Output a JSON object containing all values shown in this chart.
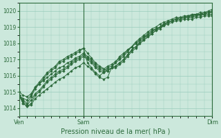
{
  "bg_color": "#cce8dc",
  "grid_color": "#99ccbb",
  "line_color": "#2d6b3c",
  "marker_color": "#2d6b3c",
  "title": "Pression niveau de la mer( hPa )",
  "xlabels": [
    "Ven",
    "Sam",
    "Dim"
  ],
  "xtick_positions": [
    0,
    32,
    96
  ],
  "ylim": [
    1013.5,
    1020.5
  ],
  "yticks": [
    1014,
    1015,
    1016,
    1017,
    1018,
    1019,
    1020
  ],
  "vlines": [
    32,
    96
  ],
  "n_points": 97,
  "lines": [
    {
      "x": [
        0,
        2,
        4,
        6,
        8,
        10,
        12,
        14,
        16,
        18,
        20,
        22,
        24,
        26,
        28,
        30,
        32,
        34,
        36,
        38,
        40,
        42,
        44,
        46,
        48,
        50,
        52,
        54,
        56,
        58,
        60,
        62,
        64,
        66,
        68,
        70,
        72,
        74,
        76,
        78,
        80,
        82,
        84,
        86,
        88,
        90,
        92,
        94,
        96
      ],
      "y": [
        1014.8,
        1014.4,
        1014.2,
        1014.5,
        1014.9,
        1015.1,
        1015.4,
        1015.7,
        1015.9,
        1016.1,
        1016.3,
        1016.4,
        1016.6,
        1016.8,
        1017.0,
        1017.1,
        1017.3,
        1017.1,
        1016.9,
        1016.6,
        1016.4,
        1016.3,
        1016.5,
        1016.6,
        1016.8,
        1017.0,
        1017.2,
        1017.5,
        1017.8,
        1018.0,
        1018.2,
        1018.4,
        1018.6,
        1018.8,
        1018.9,
        1019.0,
        1019.2,
        1019.3,
        1019.4,
        1019.5,
        1019.5,
        1019.6,
        1019.6,
        1019.6,
        1019.7,
        1019.7,
        1019.8,
        1019.8,
        1019.8
      ]
    },
    {
      "x": [
        0,
        2,
        4,
        6,
        8,
        10,
        12,
        14,
        16,
        18,
        20,
        22,
        24,
        26,
        28,
        30,
        32,
        34,
        36,
        38,
        40,
        42,
        44,
        46,
        48,
        50,
        52,
        54,
        56,
        58,
        60,
        62,
        64,
        66,
        68,
        70,
        72,
        74,
        76,
        78,
        80,
        82,
        84,
        86,
        88,
        90,
        92,
        94,
        96
      ],
      "y": [
        1014.8,
        1014.3,
        1014.1,
        1014.3,
        1014.8,
        1015.0,
        1015.3,
        1015.6,
        1015.8,
        1016.0,
        1016.2,
        1016.3,
        1016.5,
        1016.7,
        1016.9,
        1017.0,
        1017.2,
        1017.0,
        1016.8,
        1016.5,
        1016.3,
        1016.2,
        1016.3,
        1016.5,
        1016.6,
        1016.8,
        1017.0,
        1017.3,
        1017.6,
        1017.8,
        1018.0,
        1018.2,
        1018.4,
        1018.6,
        1018.8,
        1018.9,
        1019.1,
        1019.2,
        1019.3,
        1019.4,
        1019.4,
        1019.5,
        1019.5,
        1019.5,
        1019.6,
        1019.6,
        1019.7,
        1019.7,
        1019.7
      ]
    },
    {
      "x": [
        0,
        2,
        4,
        6,
        8,
        10,
        12,
        14,
        16,
        18,
        20,
        22,
        24,
        26,
        28,
        30,
        32,
        34,
        36,
        38,
        40,
        44,
        46,
        48,
        50,
        52,
        54,
        56,
        58,
        60,
        62,
        64,
        66,
        68,
        70,
        72,
        74,
        76,
        78,
        80,
        82,
        84,
        86,
        88,
        90,
        92,
        94,
        96
      ],
      "y": [
        1014.8,
        1014.5,
        1014.3,
        1014.7,
        1015.2,
        1015.5,
        1015.8,
        1016.1,
        1016.3,
        1016.5,
        1016.8,
        1016.9,
        1017.1,
        1017.2,
        1017.35,
        1017.5,
        1017.7,
        1017.4,
        1017.1,
        1016.8,
        1016.6,
        1016.3,
        1016.5,
        1016.6,
        1016.8,
        1017.0,
        1017.3,
        1017.6,
        1017.8,
        1018.1,
        1018.3,
        1018.5,
        1018.7,
        1018.9,
        1019.0,
        1019.2,
        1019.3,
        1019.4,
        1019.5,
        1019.5,
        1019.6,
        1019.6,
        1019.7,
        1019.7,
        1019.8,
        1019.8,
        1019.9,
        1019.9
      ]
    },
    {
      "x": [
        0,
        2,
        4,
        6,
        8,
        10,
        12,
        14,
        16,
        18,
        20,
        22,
        24,
        26,
        28,
        30,
        32,
        34,
        36,
        38,
        40,
        42,
        44,
        48,
        50,
        52,
        54,
        56,
        58,
        60,
        62,
        64,
        66,
        68,
        70,
        72,
        74,
        76,
        78,
        80,
        82,
        84,
        86,
        88,
        90,
        92,
        94,
        96
      ],
      "y": [
        1014.8,
        1014.6,
        1014.5,
        1014.8,
        1015.3,
        1015.6,
        1015.9,
        1016.2,
        1016.4,
        1016.6,
        1016.9,
        1017.0,
        1017.2,
        1017.3,
        1017.45,
        1017.6,
        1017.7,
        1016.8,
        1016.5,
        1016.2,
        1016.0,
        1016.2,
        1016.4,
        1016.5,
        1016.7,
        1016.9,
        1017.2,
        1017.5,
        1017.7,
        1018.0,
        1018.2,
        1018.4,
        1018.6,
        1018.8,
        1019.0,
        1019.1,
        1019.3,
        1019.4,
        1019.5,
        1019.6,
        1019.6,
        1019.7,
        1019.7,
        1019.8,
        1019.8,
        1019.9,
        1019.9,
        1020.0
      ]
    },
    {
      "x": [
        0,
        2,
        4,
        6,
        8,
        10,
        12,
        14,
        16,
        18,
        20,
        22,
        24,
        26,
        28,
        30,
        32,
        34,
        36,
        38,
        40,
        42,
        44,
        46,
        50,
        52,
        54,
        56,
        58,
        60,
        62,
        64,
        66,
        68,
        70,
        72,
        74,
        76,
        78,
        80,
        82,
        84,
        86,
        88,
        90,
        92,
        94,
        96
      ],
      "y": [
        1014.8,
        1014.3,
        1014.1,
        1014.2,
        1014.6,
        1014.8,
        1015.0,
        1015.2,
        1015.4,
        1015.6,
        1015.8,
        1015.9,
        1016.1,
        1016.3,
        1016.5,
        1016.6,
        1016.8,
        1016.6,
        1016.4,
        1016.1,
        1015.9,
        1015.8,
        1015.9,
        1016.5,
        1017.2,
        1017.4,
        1017.6,
        1017.8,
        1018.0,
        1018.2,
        1018.4,
        1018.5,
        1018.7,
        1018.9,
        1019.0,
        1019.2,
        1019.3,
        1019.4,
        1019.5,
        1019.5,
        1019.6,
        1019.7,
        1019.7,
        1019.8,
        1019.8,
        1019.9,
        1019.9,
        1020.0
      ]
    },
    {
      "x": [
        0,
        2,
        4,
        6,
        8,
        10,
        12,
        14,
        16,
        18,
        20,
        22,
        24,
        26,
        28,
        30,
        32,
        34,
        36,
        38,
        40,
        42,
        44,
        46,
        48,
        50,
        52,
        54,
        56,
        58,
        60,
        62,
        64,
        66,
        68,
        70,
        72,
        74,
        76,
        78,
        80,
        82,
        84,
        86,
        88,
        90,
        92,
        94,
        96
      ],
      "y": [
        1015.0,
        1014.8,
        1014.7,
        1014.9,
        1015.3,
        1015.5,
        1015.7,
        1015.9,
        1016.1,
        1016.3,
        1016.5,
        1016.6,
        1016.8,
        1016.9,
        1017.1,
        1017.2,
        1017.4,
        1017.2,
        1017.0,
        1016.7,
        1016.5,
        1016.4,
        1016.6,
        1016.7,
        1016.9,
        1017.1,
        1017.3,
        1017.6,
        1017.8,
        1018.1,
        1018.3,
        1018.5,
        1018.7,
        1018.9,
        1019.0,
        1019.2,
        1019.3,
        1019.4,
        1019.5,
        1019.6,
        1019.6,
        1019.7,
        1019.7,
        1019.8,
        1019.8,
        1019.9,
        1019.9,
        1020.0,
        1020.1
      ]
    }
  ]
}
